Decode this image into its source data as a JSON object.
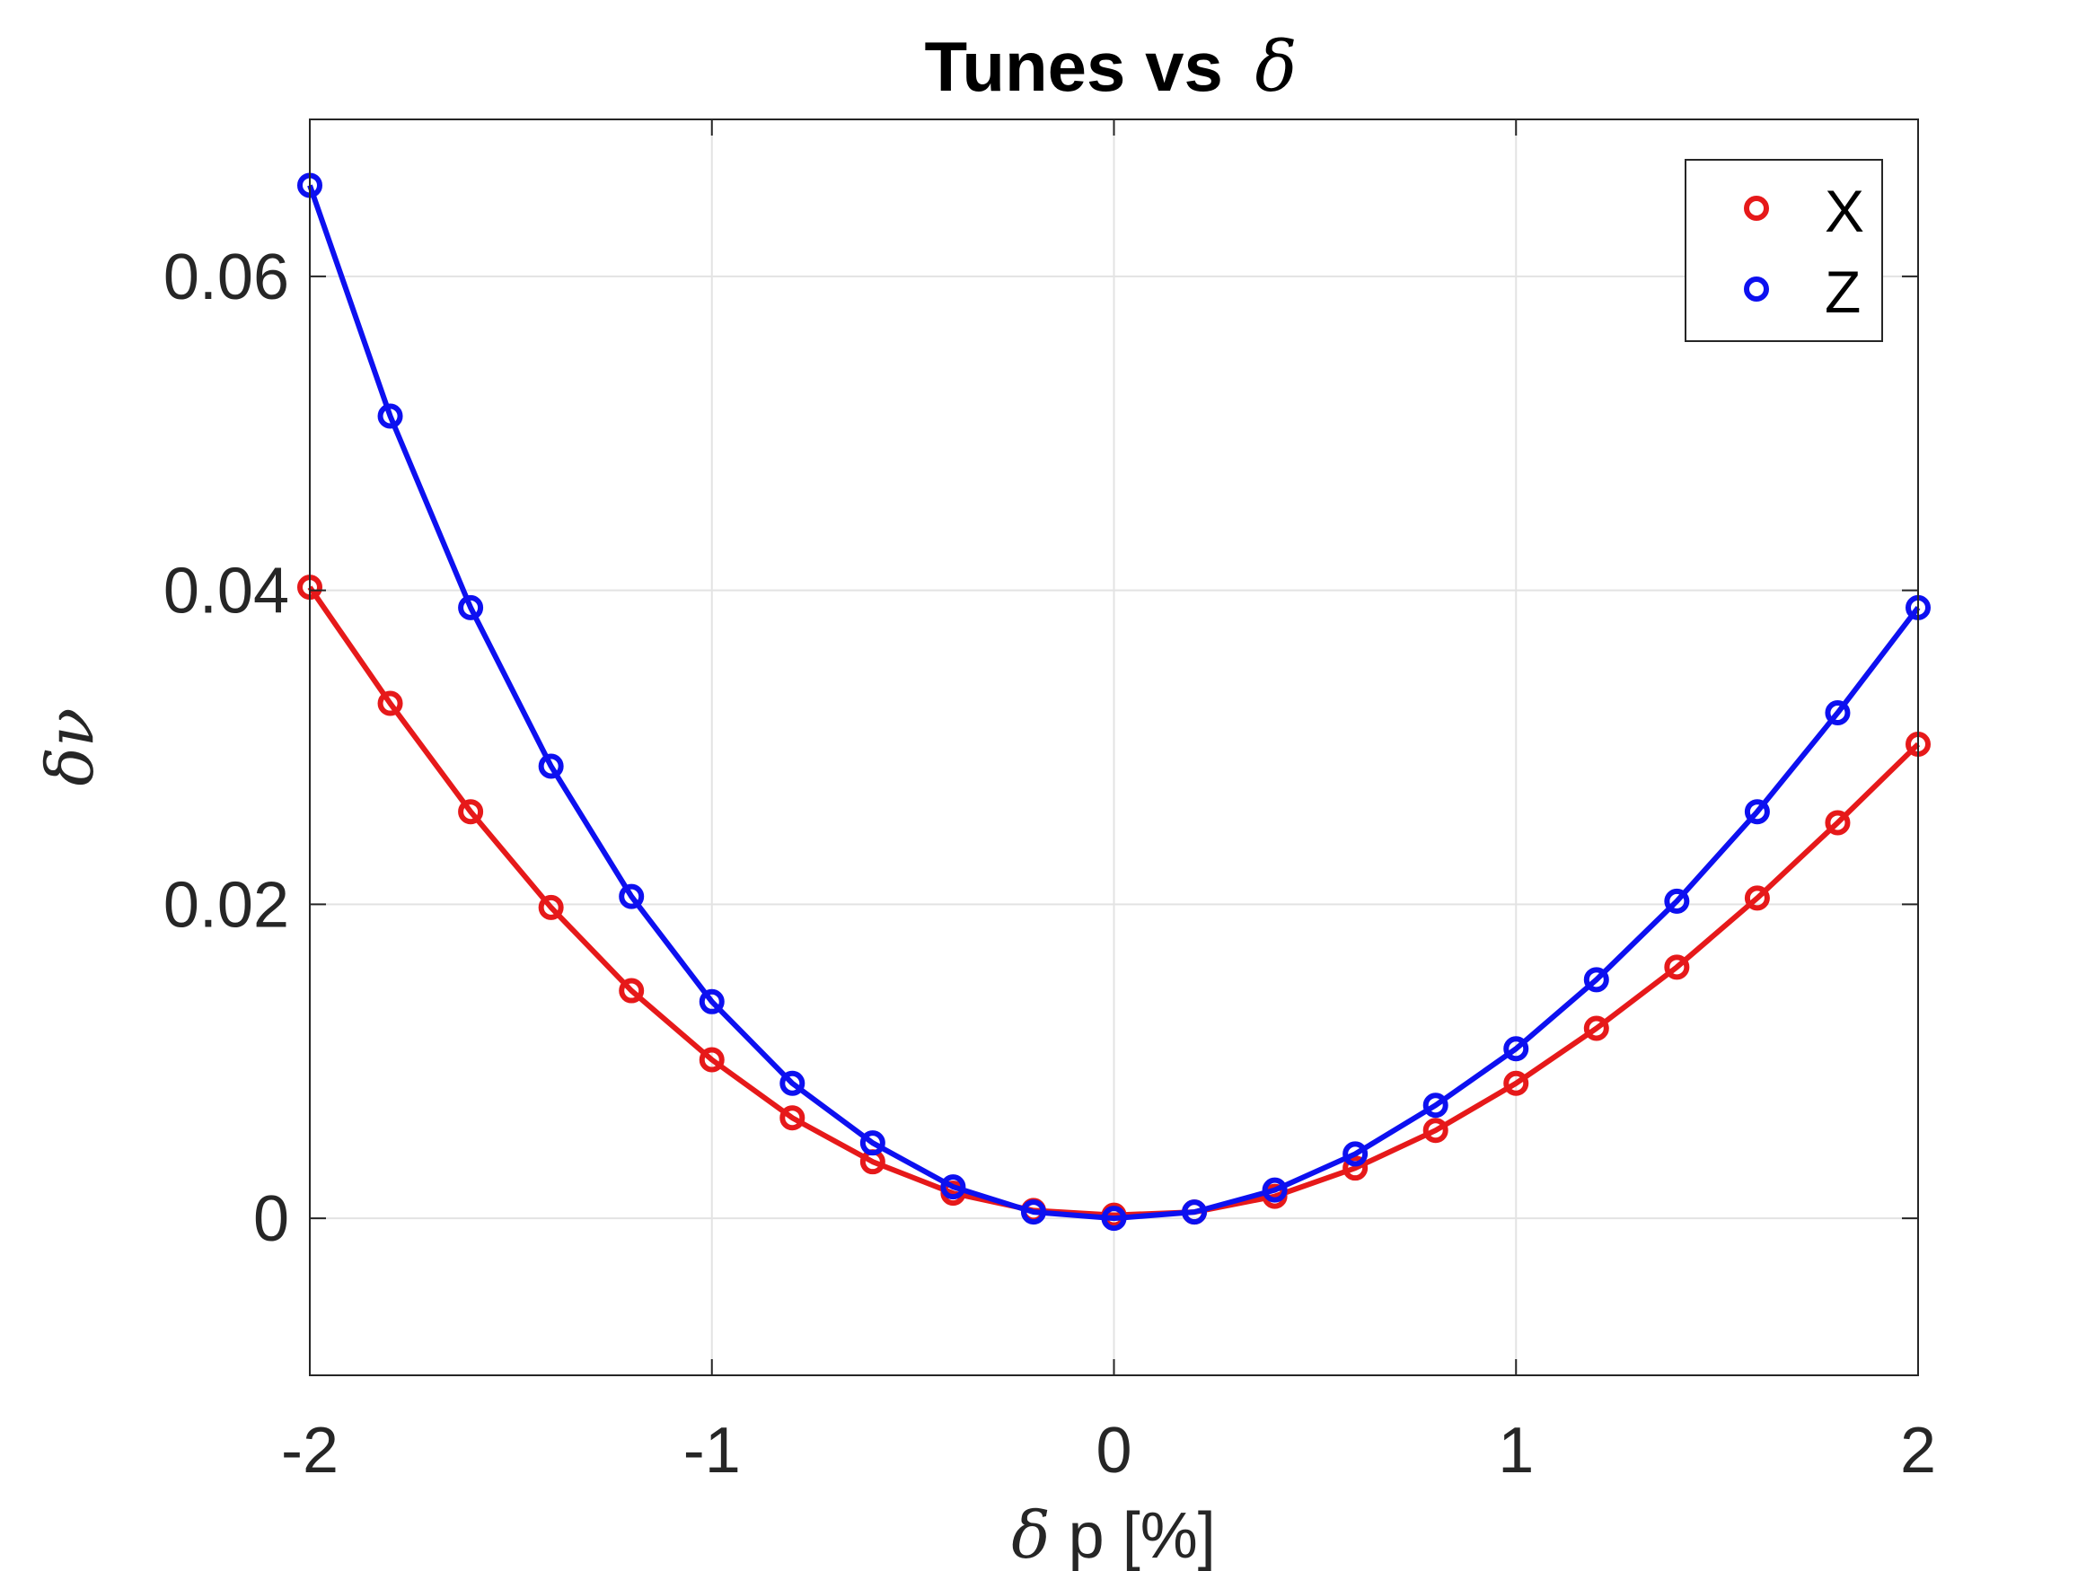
{
  "chart_data": {
    "type": "line",
    "title": "Tunes vs",
    "title_symbol": "δ",
    "xlabel_symbol": "δ",
    "xlabel": "p [%]",
    "ylabel_symbol": "δν",
    "xlim": [
      -2,
      2
    ],
    "ylim": [
      -0.01,
      0.07
    ],
    "xticks": [
      -2,
      -1,
      0,
      1,
      2
    ],
    "xtick_labels": [
      "-2",
      "-1",
      "0",
      "1",
      "2"
    ],
    "yticks": [
      0,
      0.02,
      0.04,
      0.06
    ],
    "ytick_labels": [
      "0",
      "0.02",
      "0.04",
      "0.06"
    ],
    "grid": true,
    "legend_position": "top-right",
    "x": [
      -2.0,
      -1.8,
      -1.6,
      -1.4,
      -1.2,
      -1.0,
      -0.8,
      -0.6,
      -0.4,
      -0.2,
      0.0,
      0.2,
      0.4,
      0.6,
      0.8,
      1.0,
      1.2,
      1.4,
      1.6,
      1.8,
      2.0
    ],
    "series": [
      {
        "name": "X",
        "color": "#e6191a",
        "values": [
          0.0402,
          0.0328,
          0.0259,
          0.0198,
          0.0145,
          0.0101,
          0.0064,
          0.0036,
          0.0016,
          0.0005,
          0.0002,
          0.0004,
          0.0014,
          0.0032,
          0.0056,
          0.0086,
          0.0121,
          0.016,
          0.0204,
          0.0252,
          0.0302
        ]
      },
      {
        "name": "Z",
        "color": "#0d10f0",
        "values": [
          0.0658,
          0.0511,
          0.0389,
          0.0288,
          0.0205,
          0.0138,
          0.0086,
          0.0048,
          0.002,
          0.0004,
          0.0,
          0.0004,
          0.0018,
          0.0041,
          0.0072,
          0.0108,
          0.0152,
          0.0202,
          0.0259,
          0.0322,
          0.0389
        ]
      }
    ]
  }
}
